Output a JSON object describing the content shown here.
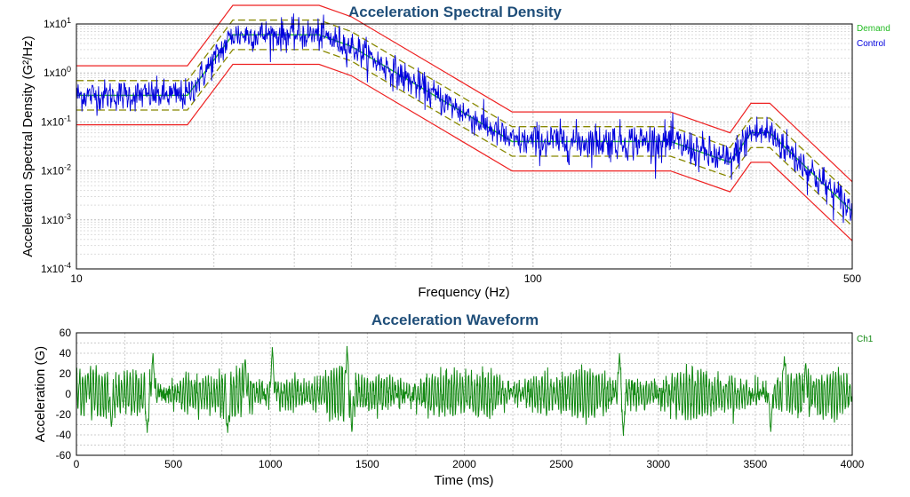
{
  "chart_data": [
    {
      "type": "line",
      "title": "Acceleration Spectral Density",
      "xlabel": "Frequency (Hz)",
      "ylabel": "Acceleration Spectral Density (G²/Hz)",
      "x_scale": "log",
      "y_scale": "log",
      "xlim": [
        10,
        500
      ],
      "ylim": [
        0.0001,
        10
      ],
      "grid": true,
      "legend_position": "top-right",
      "x_ticks": [
        {
          "value": 10,
          "label": "10"
        },
        {
          "value": 100,
          "label": "100"
        },
        {
          "value": 500,
          "label": "500"
        }
      ],
      "y_ticks": [
        {
          "value": 0.0001,
          "label": "1x10-4"
        },
        {
          "value": 0.001,
          "label": "1x10-3"
        },
        {
          "value": 0.01,
          "label": "1x10-2"
        },
        {
          "value": 0.1,
          "label": "1x10-1"
        },
        {
          "value": 1,
          "label": "1x10 0"
        },
        {
          "value": 10,
          "label": "1x10 1"
        }
      ],
      "series": [
        {
          "name": "Demand",
          "color": "#22bb22",
          "x": [
            10,
            17.5,
            22,
            34,
            40,
            90,
            200,
            270,
            300,
            330,
            500
          ],
          "y": [
            0.35,
            0.35,
            6,
            6,
            3.5,
            0.04,
            0.04,
            0.015,
            0.06,
            0.06,
            0.0015
          ]
        },
        {
          "name": "Control",
          "color": "#0000dd",
          "noise": true,
          "x": [
            10,
            17.5,
            22,
            34,
            40,
            90,
            200,
            270,
            300,
            330,
            500
          ],
          "y": [
            0.35,
            0.35,
            6,
            6,
            3.5,
            0.04,
            0.04,
            0.015,
            0.06,
            0.06,
            0.0015
          ]
        }
      ],
      "limit_lines": [
        {
          "role": "abort",
          "color": "#ee2222",
          "style": "solid",
          "factor": 4
        },
        {
          "role": "alarm",
          "color": "#888800",
          "style": "dashed",
          "factor": 2
        }
      ]
    },
    {
      "type": "line",
      "title": "Acceleration Waveform",
      "xlabel": "Time (ms)",
      "ylabel": "Acceleration (G)",
      "xlim": [
        0,
        4000
      ],
      "ylim": [
        -60,
        60
      ],
      "grid": true,
      "legend_position": "top-right",
      "x_ticks": [
        0,
        500,
        1000,
        1500,
        2000,
        2500,
        3000,
        3500,
        4000
      ],
      "y_ticks": [
        -60,
        -40,
        -20,
        0,
        20,
        40,
        60
      ],
      "series": [
        {
          "name": "Ch1",
          "color": "#118811",
          "noise": true,
          "peaks": [
            {
              "x": 60,
              "y": 20
            },
            {
              "x": 180,
              "y": -32
            },
            {
              "x": 365,
              "y": -38
            },
            {
              "x": 395,
              "y": 40
            },
            {
              "x": 780,
              "y": -38
            },
            {
              "x": 870,
              "y": 34
            },
            {
              "x": 1010,
              "y": 46
            },
            {
              "x": 1395,
              "y": 47
            },
            {
              "x": 1420,
              "y": -37
            },
            {
              "x": 2800,
              "y": 40
            },
            {
              "x": 2820,
              "y": -41
            },
            {
              "x": 3580,
              "y": -37
            },
            {
              "x": 3650,
              "y": 37
            },
            {
              "x": 3760,
              "y": 30
            }
          ]
        }
      ]
    }
  ]
}
